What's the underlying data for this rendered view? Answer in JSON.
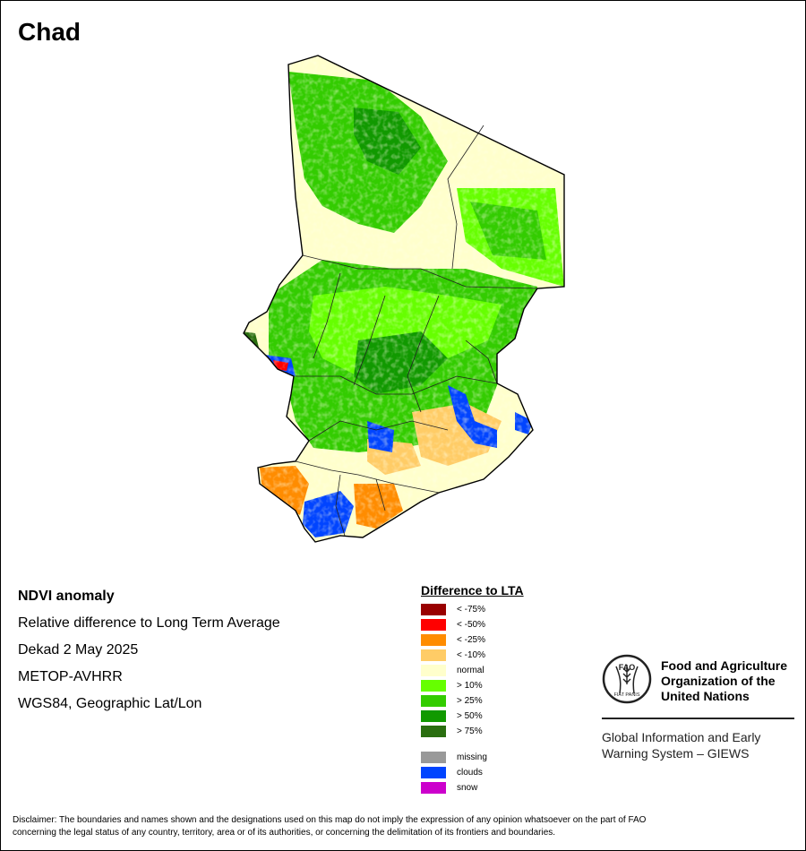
{
  "map": {
    "title": "Chad"
  },
  "info": {
    "product": "NDVI anomaly",
    "description": "Relative difference to Long Term Average",
    "period": "Dekad 2 May 2025",
    "sensor": "METOP-AVHRR",
    "projection": "WGS84, Geographic Lat/Lon"
  },
  "legend": {
    "title": "Difference to LTA",
    "classes": [
      {
        "label": "< -75%",
        "color": "#990000"
      },
      {
        "label": "< -50%",
        "color": "#ff0000"
      },
      {
        "label": "< -25%",
        "color": "#ff8c00"
      },
      {
        "label": "< -10%",
        "color": "#ffcc66"
      },
      {
        "label": "normal",
        "color": "#ffffcc"
      },
      {
        "label": "> 10%",
        "color": "#66ff00"
      },
      {
        "label": "> 25%",
        "color": "#33cc00"
      },
      {
        "label": "> 50%",
        "color": "#119900"
      },
      {
        "label": "> 75%",
        "color": "#2a6e10"
      }
    ],
    "extra": [
      {
        "label": "missing",
        "color": "#999999"
      },
      {
        "label": "clouds",
        "color": "#0044ff"
      },
      {
        "label": "snow",
        "color": "#cc00cc"
      }
    ]
  },
  "organization": {
    "line1": "Food and Agriculture",
    "line2": "Organization of the",
    "line3": "United Nations",
    "emblem_letters": "FAO",
    "emblem_motto": "FIAT PANIS",
    "system1": "Global Information and Early",
    "system2": "Warning System – GIEWS"
  },
  "disclaimer": {
    "line1": "Disclaimer: The boundaries and names shown and the designations used on this map do not imply the expression of any opinion whatsoever on the part of FAO",
    "line2": "concerning the legal status of any country, territory, area or of its authorities, or concerning the delimitation of its frontiers and boundaries."
  }
}
